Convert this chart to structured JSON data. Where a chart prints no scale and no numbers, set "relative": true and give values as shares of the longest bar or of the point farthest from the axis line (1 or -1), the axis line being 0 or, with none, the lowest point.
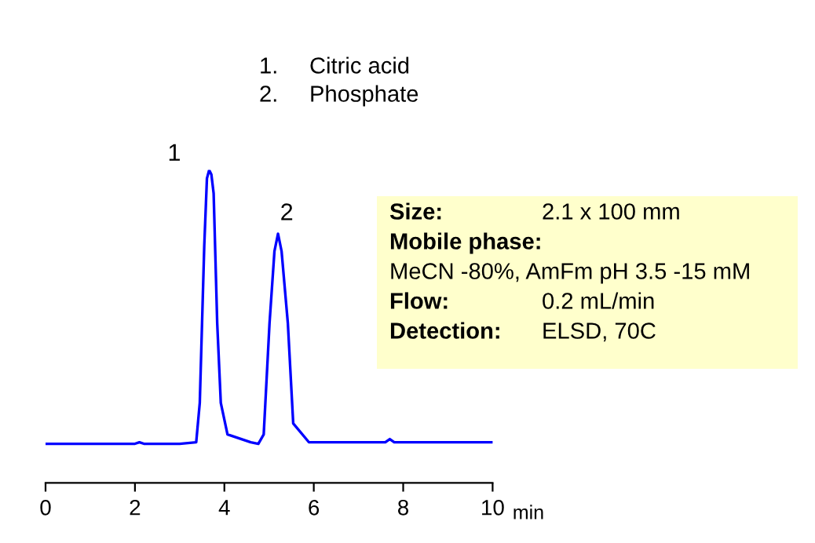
{
  "chart_data": {
    "type": "line",
    "relative": true,
    "xlabel": "min",
    "xlim": [
      0,
      10
    ],
    "xticks": [
      0,
      2,
      4,
      6,
      8,
      10
    ],
    "grid": false,
    "legend": false,
    "marker": "none",
    "line_style": "solid",
    "series": [
      {
        "color": "#0000ff",
        "x": [
          0,
          2.0,
          2.1,
          2.2,
          3.0,
          3.37,
          3.45,
          3.55,
          3.61,
          3.66,
          3.71,
          3.76,
          3.84,
          3.92,
          4.07,
          4.59,
          4.76,
          4.88,
          5.01,
          5.12,
          5.2,
          5.28,
          5.42,
          5.54,
          5.89,
          7.6,
          7.7,
          7.8,
          10
        ],
        "values": [
          0.125,
          0.125,
          0.13,
          0.125,
          0.125,
          0.13,
          0.256,
          0.757,
          0.973,
          1.0,
          0.985,
          0.925,
          0.51,
          0.256,
          0.155,
          0.13,
          0.125,
          0.155,
          0.51,
          0.74,
          0.796,
          0.74,
          0.51,
          0.19,
          0.13,
          0.13,
          0.14,
          0.13,
          0.13
        ]
      }
    ],
    "annotations": [
      {
        "text": "1",
        "x": 3.66,
        "y": 1.0
      },
      {
        "text": "2",
        "x": 5.2,
        "y": 0.796
      },
      "1.",
      "Citric acid",
      "2.",
      "Phosphate",
      "Size:",
      "2.1 x 100 mm",
      "Mobile phase:",
      "MeCN -80%, AmFm pH 3.5 -15 mM",
      "Flow:",
      "0.2 mL/min",
      "Detection:",
      "ELSD, 70C"
    ]
  }
}
